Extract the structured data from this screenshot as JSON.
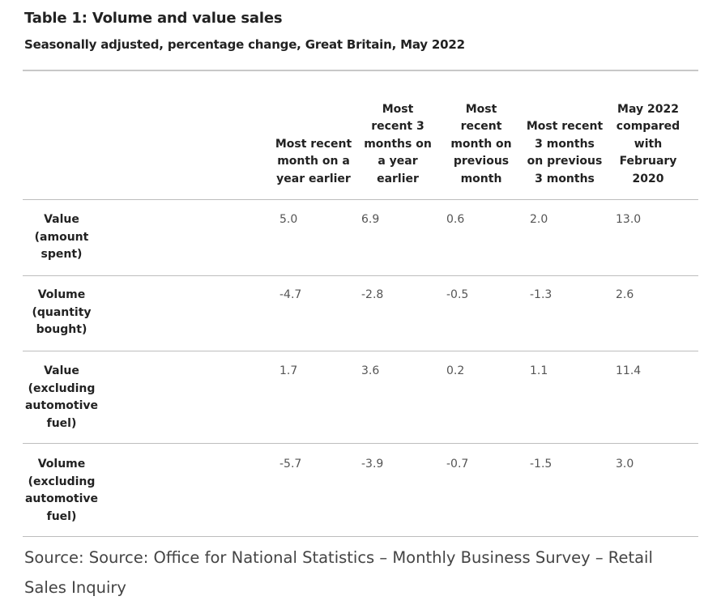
{
  "title": "Table 1: Volume and value sales",
  "subtitle": "Seasonally adjusted, percentage change, Great Britain, May 2022",
  "columns": [
    "Most recent month on a year earlier",
    "Most recent 3 months on a year earlier",
    "Most recent month on previous month",
    "Most recent 3 months on previous 3 months",
    "May 2022 compared with February 2020"
  ],
  "rows": [
    {
      "label": "Value (amount spent)",
      "values": [
        "5.0",
        "6.9",
        "0.6",
        "2.0",
        "13.0"
      ]
    },
    {
      "label": "Volume (quantity bought)",
      "values": [
        "-4.7",
        "-2.8",
        "-0.5",
        "-1.3",
        "2.6"
      ]
    },
    {
      "label": "Value (excluding automotive fuel)",
      "values": [
        "1.7",
        "3.6",
        "0.2",
        "1.1",
        "11.4"
      ]
    },
    {
      "label": "Volume (excluding automotive fuel)",
      "values": [
        "-5.7",
        "-3.9",
        "-0.7",
        "-1.5",
        "3.0"
      ]
    }
  ],
  "source": "Source: Source: Office for National Statistics – Monthly Business Survey – Retail Sales Inquiry"
}
